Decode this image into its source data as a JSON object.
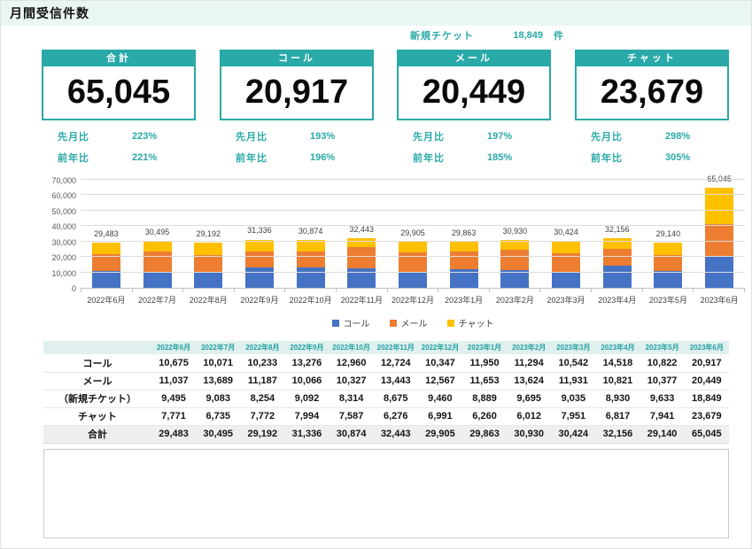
{
  "header": {
    "title": "月間受信件数"
  },
  "new_ticket": {
    "label": "新規チケット",
    "value": "18,849",
    "unit": "件"
  },
  "cards": [
    {
      "title": "合計",
      "value": "65,045",
      "mom_label": "先月比",
      "mom": "223%",
      "yoy_label": "前年比",
      "yoy": "221%"
    },
    {
      "title": "コール",
      "value": "20,917",
      "mom_label": "先月比",
      "mom": "193%",
      "yoy_label": "前年比",
      "yoy": "196%"
    },
    {
      "title": "メール",
      "value": "20,449",
      "mom_label": "先月比",
      "mom": "197%",
      "yoy_label": "前年比",
      "yoy": "185%"
    },
    {
      "title": "チャット",
      "value": "23,679",
      "mom_label": "先月比",
      "mom": "298%",
      "yoy_label": "前年比",
      "yoy": "305%"
    }
  ],
  "colors": {
    "accent_teal": "#29a9a8",
    "title_bar_bg": "#e9f6f4",
    "table_header_bg": "#dff0ef",
    "total_row_bg": "#efefef",
    "call_blue": "#4472c4",
    "mail_orange": "#ed7d31",
    "chat_yellow": "#ffc000"
  },
  "chart_data": {
    "type": "bar",
    "stacked": true,
    "title": "",
    "xlabel": "",
    "ylabel": "",
    "ylim": [
      0,
      70000
    ],
    "ytick_interval": 10000,
    "ytick_labels": [
      "0",
      "10,000",
      "20,000",
      "30,000",
      "40,000",
      "50,000",
      "60,000",
      "70,000"
    ],
    "grid": true,
    "legend_position": "bottom",
    "categories": [
      "2022年6月",
      "2022年7月",
      "2022年8月",
      "2022年9月",
      "2022年10月",
      "2022年11月",
      "2022年12月",
      "2023年1月",
      "2023年2月",
      "2023年3月",
      "2023年4月",
      "2023年5月",
      "2023年6月"
    ],
    "series": [
      {
        "name": "コール",
        "color": "#4472c4",
        "values": [
          10675,
          10071,
          10233,
          13276,
          12960,
          12724,
          10347,
          11950,
          11294,
          10542,
          14518,
          10822,
          20917
        ]
      },
      {
        "name": "メール",
        "color": "#ed7d31",
        "values": [
          11037,
          13689,
          11187,
          10066,
          10327,
          13443,
          12567,
          11653,
          13624,
          11931,
          10821,
          10377,
          20449
        ]
      },
      {
        "name": "チャット",
        "color": "#ffc000",
        "values": [
          7771,
          6735,
          7772,
          7994,
          7587,
          6276,
          6991,
          6260,
          6012,
          7951,
          6817,
          7941,
          23679
        ]
      }
    ],
    "totals": [
      29483,
      30495,
      29192,
      31336,
      30874,
      32443,
      29905,
      29863,
      30930,
      30424,
      32156,
      29140,
      65045
    ],
    "total_labels": [
      "29,483",
      "30,495",
      "29,192",
      "31,336",
      "30,874",
      "32,443",
      "29,905",
      "29,863",
      "30,930",
      "30,424",
      "32,156",
      "29,140",
      "65,045"
    ]
  },
  "table": {
    "columns": [
      "",
      "2022年6月",
      "2022年7月",
      "2022年8月",
      "2022年9月",
      "2022年10月",
      "2022年11月",
      "2022年12月",
      "2023年1月",
      "2023年2月",
      "2023年3月",
      "2023年4月",
      "2023年5月",
      "2023年6月"
    ],
    "rows": [
      {
        "label": "コール",
        "values": [
          "10,675",
          "10,071",
          "10,233",
          "13,276",
          "12,960",
          "12,724",
          "10,347",
          "11,950",
          "11,294",
          "10,542",
          "14,518",
          "10,822",
          "20,917"
        ],
        "is_total": false
      },
      {
        "label": "メール",
        "values": [
          "11,037",
          "13,689",
          "11,187",
          "10,066",
          "10,327",
          "13,443",
          "12,567",
          "11,653",
          "13,624",
          "11,931",
          "10,821",
          "10,377",
          "20,449"
        ],
        "is_total": false
      },
      {
        "label": "（新規チケット）",
        "values": [
          "9,495",
          "9,083",
          "8,254",
          "9,092",
          "8,314",
          "8,675",
          "9,460",
          "8,889",
          "9,695",
          "9,035",
          "8,930",
          "9,633",
          "18,849"
        ],
        "is_total": false
      },
      {
        "label": "チャット",
        "values": [
          "7,771",
          "6,735",
          "7,772",
          "7,994",
          "7,587",
          "6,276",
          "6,991",
          "6,260",
          "6,012",
          "7,951",
          "6,817",
          "7,941",
          "23,679"
        ],
        "is_total": false
      },
      {
        "label": "合計",
        "values": [
          "29,483",
          "30,495",
          "29,192",
          "31,336",
          "30,874",
          "32,443",
          "29,905",
          "29,863",
          "30,930",
          "30,424",
          "32,156",
          "29,140",
          "65,045"
        ],
        "is_total": true
      }
    ]
  }
}
